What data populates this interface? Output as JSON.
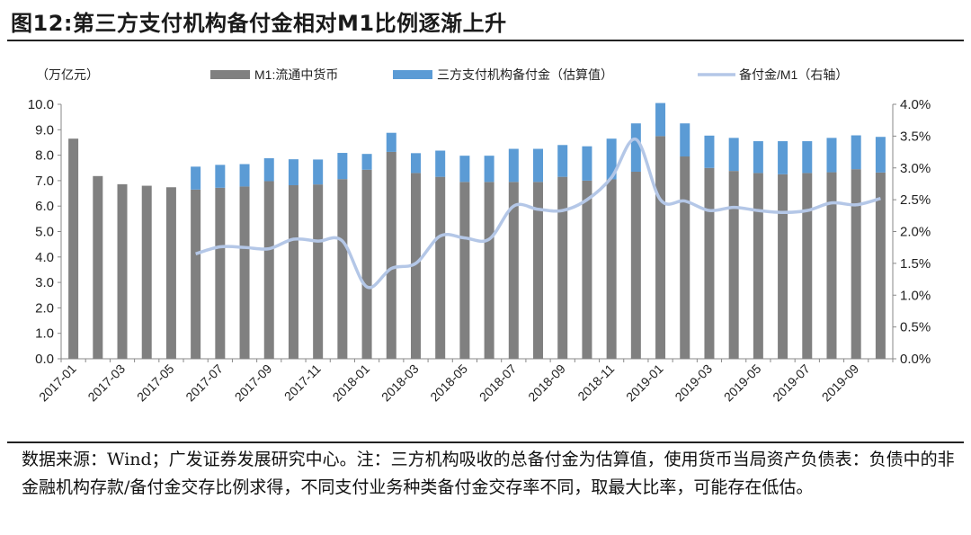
{
  "title": "图12:第三方支付机构备付金相对M1比例逐渐上升",
  "footer": "数据来源：Wind；广发证券发展研究中心。注：三方机构吸收的总备付金为估算值，使用货币当局资产负债表：负债中的非金融机构存款/备付金交存比例求得，不同支付业务种类备付金交存率不同，取最大比率，可能存在低估。",
  "chart_data": {
    "type": "bar",
    "stacked": true,
    "y_unit_label": "（万亿元）",
    "categories": [
      "2017-01",
      "2017-02",
      "2017-03",
      "2017-04",
      "2017-05",
      "2017-06",
      "2017-07",
      "2017-08",
      "2017-09",
      "2017-10",
      "2017-11",
      "2017-12",
      "2018-01",
      "2018-02",
      "2018-03",
      "2018-04",
      "2018-05",
      "2018-06",
      "2018-07",
      "2018-08",
      "2018-09",
      "2018-10",
      "2018-11",
      "2018-12",
      "2019-01",
      "2019-02",
      "2019-03",
      "2019-04",
      "2019-05",
      "2019-06",
      "2019-07",
      "2019-08",
      "2019-09",
      "2019-10"
    ],
    "x_tick_labels": [
      "2017-01",
      "2017-03",
      "2017-05",
      "2017-07",
      "2017-09",
      "2017-11",
      "2018-01",
      "2018-03",
      "2018-05",
      "2018-07",
      "2018-09",
      "2018-11",
      "2019-01",
      "2019-03",
      "2019-05",
      "2019-07",
      "2019-09"
    ],
    "series": [
      {
        "name": "M1:流通中货币",
        "color": "#808080",
        "axis": "left",
        "values": [
          8.65,
          7.18,
          6.86,
          6.8,
          6.74,
          6.65,
          6.72,
          6.77,
          6.98,
          6.82,
          6.85,
          7.06,
          7.43,
          8.13,
          7.3,
          7.15,
          6.95,
          6.95,
          6.95,
          6.95,
          7.15,
          7.0,
          7.05,
          7.35,
          8.75,
          7.95,
          7.5,
          7.38,
          7.3,
          7.25,
          7.3,
          7.33,
          7.45,
          7.32
        ]
      },
      {
        "name": "三方支付机构备付金（估算值）",
        "color": "#5b9bd5",
        "axis": "left",
        "values": [
          null,
          null,
          null,
          null,
          null,
          0.9,
          0.9,
          0.88,
          0.9,
          1.02,
          0.98,
          1.03,
          0.62,
          0.75,
          0.78,
          1.03,
          1.03,
          1.03,
          1.3,
          1.3,
          1.25,
          1.35,
          1.6,
          1.9,
          1.3,
          1.3,
          1.27,
          1.3,
          1.25,
          1.3,
          1.25,
          1.35,
          1.33,
          1.4
        ]
      },
      {
        "name": "备付金/M1（右轴）",
        "type": "line",
        "color": "#b4c7e7",
        "axis": "right",
        "values": [
          null,
          null,
          null,
          null,
          null,
          1.65,
          1.76,
          1.75,
          1.73,
          1.88,
          1.85,
          1.85,
          1.13,
          1.42,
          1.5,
          1.93,
          1.9,
          1.88,
          2.4,
          2.35,
          2.33,
          2.5,
          2.85,
          3.45,
          2.5,
          2.48,
          2.33,
          2.38,
          2.33,
          2.3,
          2.33,
          2.45,
          2.42,
          2.52
        ]
      }
    ],
    "ylim": [
      0,
      10
    ],
    "yticks": [
      "0.0",
      "1.0",
      "2.0",
      "3.0",
      "4.0",
      "5.0",
      "6.0",
      "7.0",
      "8.0",
      "9.0",
      "10.0"
    ],
    "y2lim": [
      0,
      4
    ],
    "y2ticks": [
      "0.0%",
      "0.5%",
      "1.0%",
      "1.5%",
      "2.0%",
      "2.5%",
      "3.0%",
      "3.5%",
      "4.0%"
    ],
    "legend_position": "top",
    "grid": false
  }
}
